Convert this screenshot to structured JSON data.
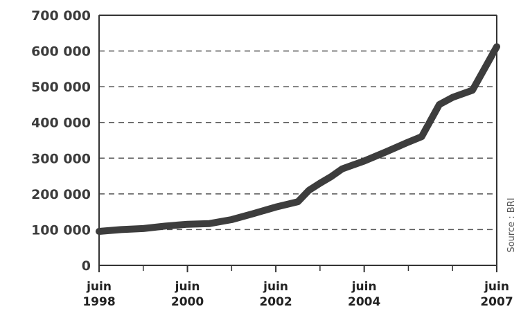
{
  "chart_data": {
    "type": "line",
    "title": "",
    "xlabel": "",
    "ylabel": "",
    "ylim": [
      0,
      700000
    ],
    "grid": "horizontal dashed",
    "y_ticks": [
      {
        "value": 0,
        "label": "0"
      },
      {
        "value": 100000,
        "label": "100 000"
      },
      {
        "value": 200000,
        "label": "200 000"
      },
      {
        "value": 300000,
        "label": "300 000"
      },
      {
        "value": 400000,
        "label": "400 000"
      },
      {
        "value": 500000,
        "label": "500 000"
      },
      {
        "value": 600000,
        "label": "600 000"
      },
      {
        "value": 700000,
        "label": "700 000"
      }
    ],
    "x_range": [
      1998.5,
      2007.5
    ],
    "x_ticks": [
      {
        "value": 1998.5,
        "month": "juin",
        "year": "1998"
      },
      {
        "value": 2000.5,
        "month": "juin",
        "year": "2000"
      },
      {
        "value": 2002.5,
        "month": "juin",
        "year": "2002"
      },
      {
        "value": 2004.5,
        "month": "juin",
        "year": "2004"
      },
      {
        "value": 2007.5,
        "month": "juin",
        "year": "2007"
      }
    ],
    "x_minor_ticks": [
      1999.5,
      2001.5,
      2003.5,
      2005.5,
      2006.5
    ],
    "series": [
      {
        "color": "#3d3d3d",
        "points": [
          [
            1998.5,
            95000
          ],
          [
            1999.0,
            100000
          ],
          [
            1999.5,
            103000
          ],
          [
            2000.0,
            110000
          ],
          [
            2000.5,
            115000
          ],
          [
            2001.0,
            117000
          ],
          [
            2001.5,
            128000
          ],
          [
            2002.0,
            145000
          ],
          [
            2002.5,
            163000
          ],
          [
            2003.0,
            178000
          ],
          [
            2003.25,
            210000
          ],
          [
            2003.5,
            230000
          ],
          [
            2003.75,
            248000
          ],
          [
            2004.0,
            270000
          ],
          [
            2004.5,
            292000
          ],
          [
            2005.0,
            318000
          ],
          [
            2005.5,
            345000
          ],
          [
            2005.8,
            360000
          ],
          [
            2006.2,
            450000
          ],
          [
            2006.5,
            470000
          ],
          [
            2006.95,
            490000
          ],
          [
            2007.5,
            612000
          ]
        ]
      }
    ],
    "source_note": "Source : BRI"
  }
}
